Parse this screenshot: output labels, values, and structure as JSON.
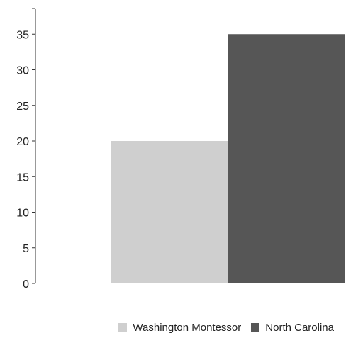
{
  "chart_data": {
    "type": "bar",
    "title": "",
    "xlabel": "",
    "ylabel": "",
    "ylim": [
      0,
      36
    ],
    "yticks": [
      0,
      5,
      10,
      15,
      20,
      25,
      30,
      35
    ],
    "grid": false,
    "legend_position": "bottom-right",
    "series": [
      {
        "name": "Washington Montessor",
        "value": 20,
        "color": "#cfcfcf"
      },
      {
        "name": "North Carolina",
        "value": 35,
        "color": "#565656"
      }
    ]
  }
}
